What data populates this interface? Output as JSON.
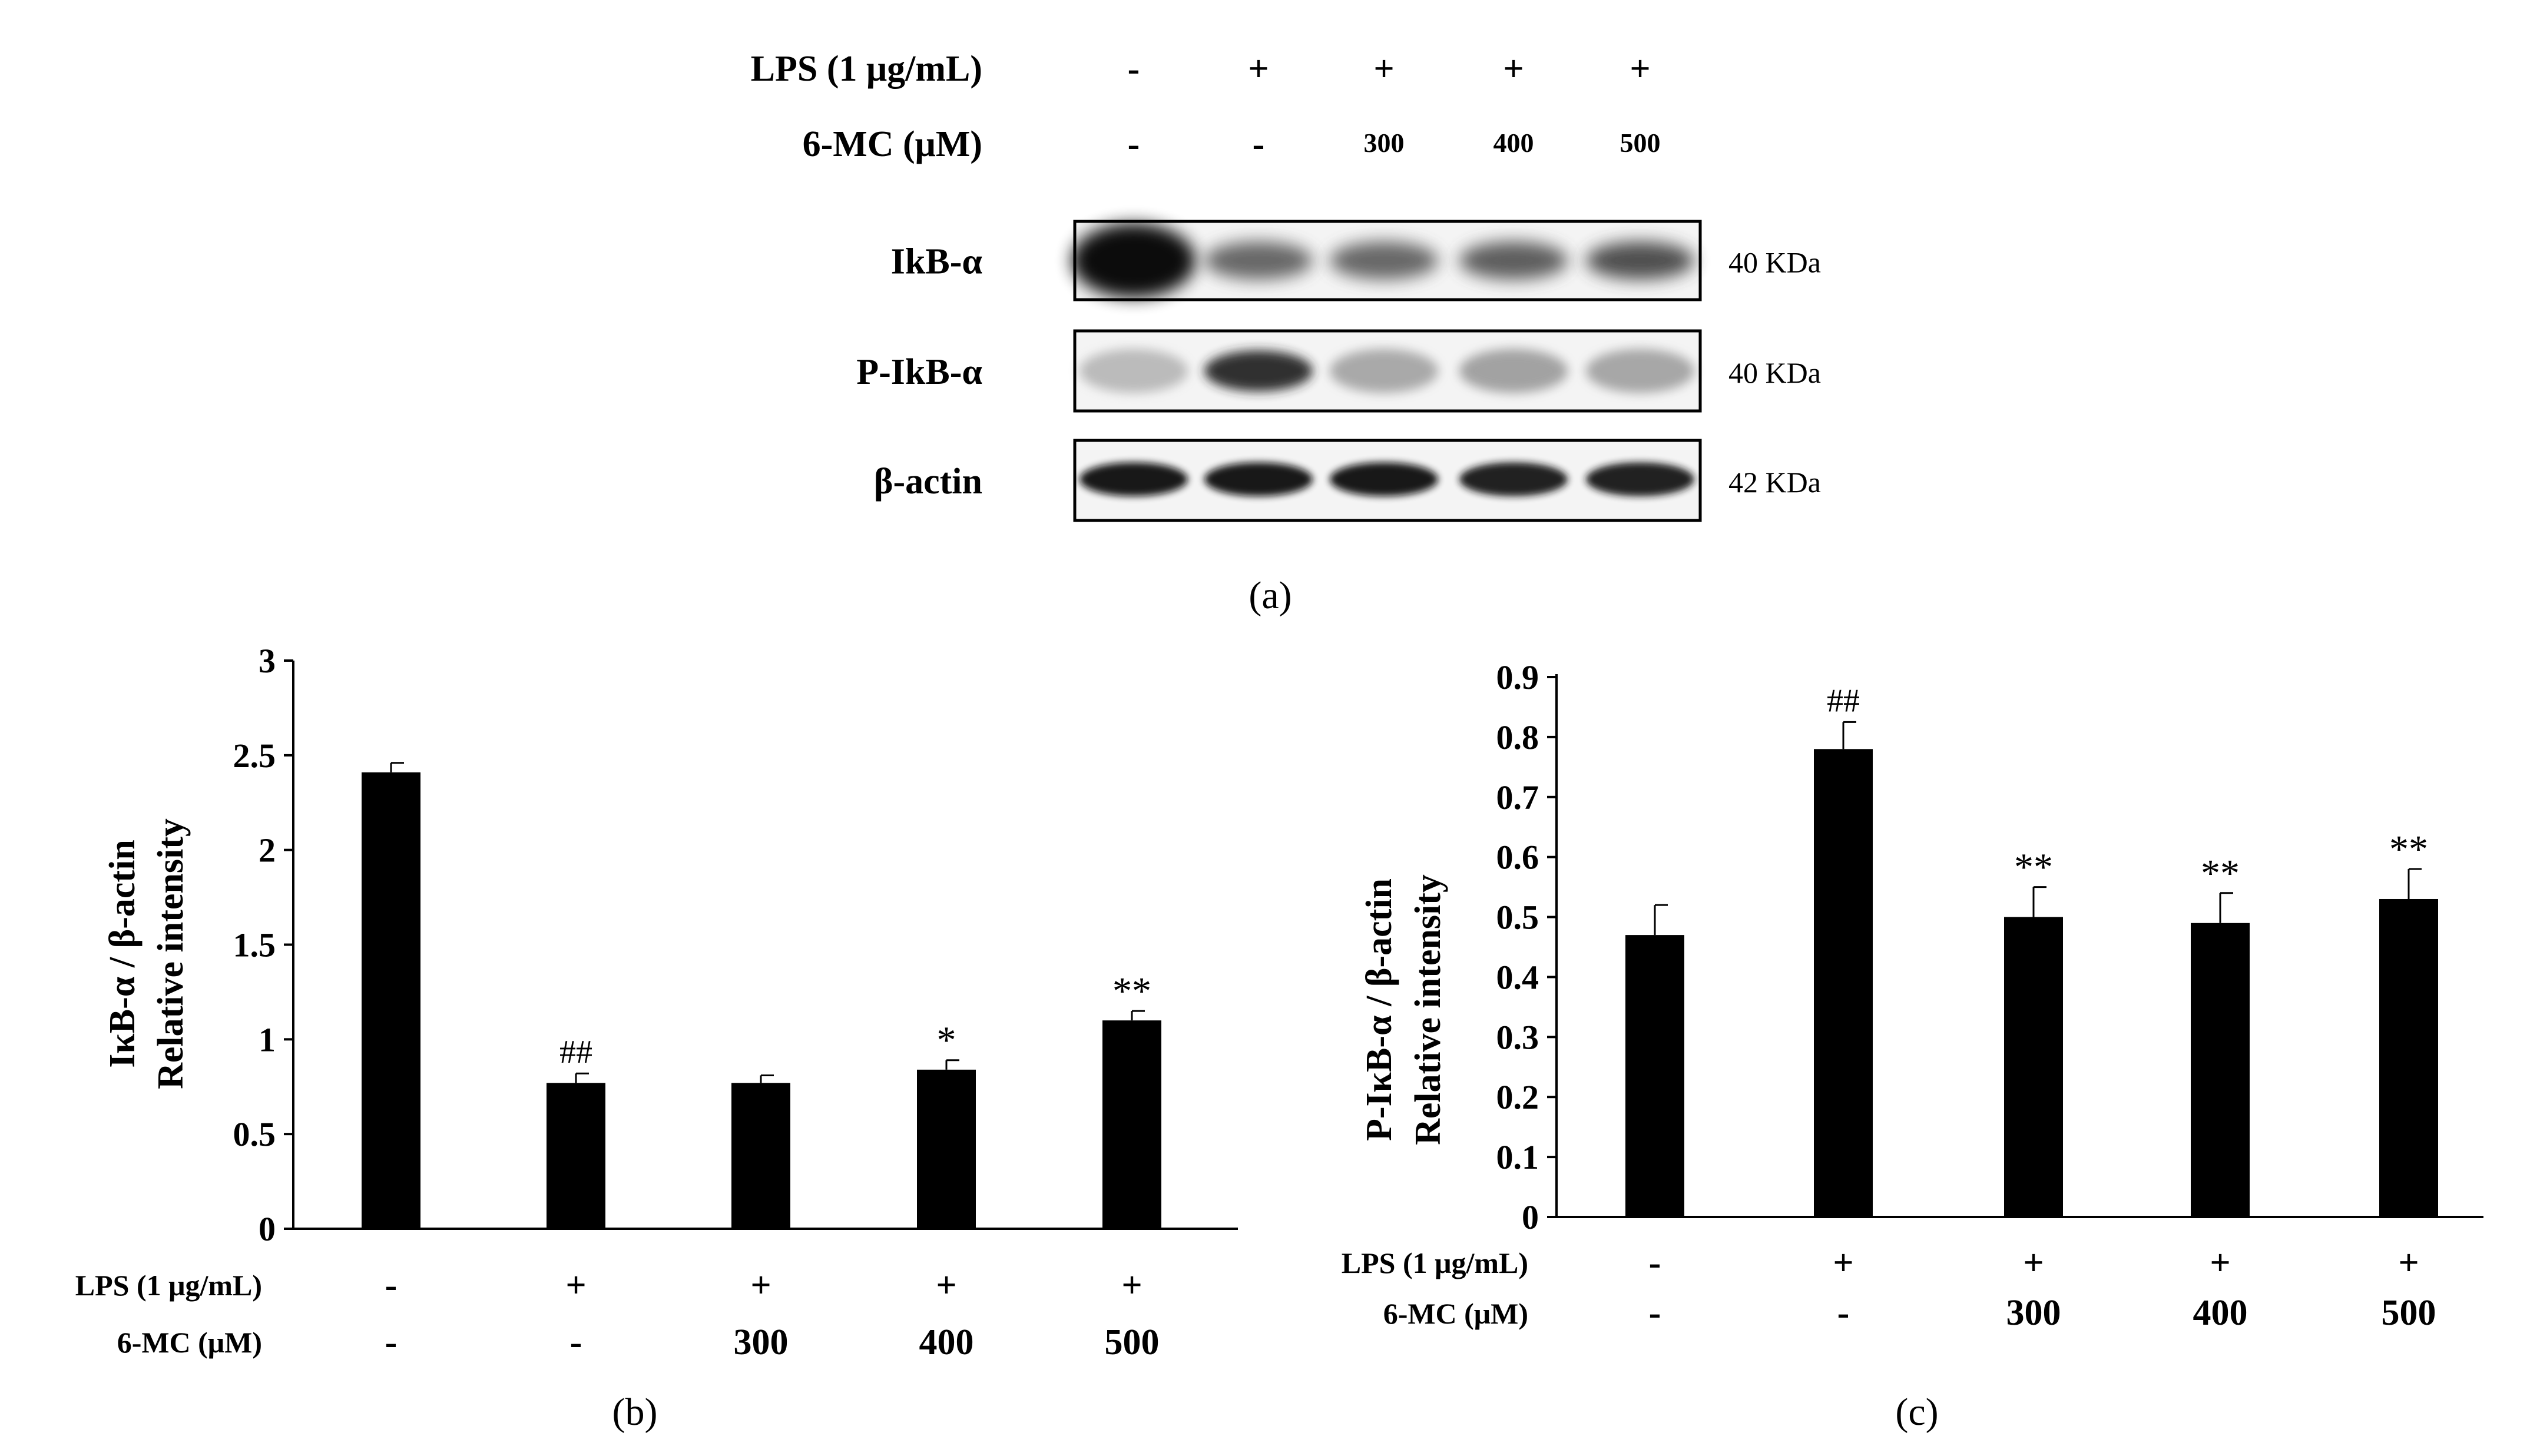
{
  "panel_a": {
    "row_labels": {
      "lps": "LPS (1 μg/mL)",
      "mc": "6-MC (μM)"
    },
    "lps_signs": [
      "-",
      "+",
      "+",
      "+",
      "+"
    ],
    "mc_values": [
      "-",
      "-",
      "300",
      "400",
      "500"
    ],
    "blots": [
      {
        "label": "IkB-α",
        "kda": "40 KDa",
        "band_intensity": [
          1.0,
          0.62,
          0.62,
          0.66,
          0.72
        ],
        "band_blur": [
          1.0,
          0.6,
          0.6,
          0.6,
          0.6
        ]
      },
      {
        "label": "P-IkB-α",
        "kda": "40 KDa",
        "band_intensity": [
          0.28,
          0.85,
          0.35,
          0.38,
          0.36
        ],
        "band_blur": [
          0.8,
          0.7,
          0.8,
          0.8,
          0.8
        ]
      },
      {
        "label": "β-actin",
        "kda": "42 KDa",
        "band_intensity": [
          0.95,
          0.95,
          0.95,
          0.92,
          0.9
        ],
        "band_blur": [
          0.45,
          0.45,
          0.45,
          0.45,
          0.45
        ]
      }
    ],
    "caption": "(a)"
  },
  "panel_b": {
    "caption": "(b)",
    "row_labels": {
      "lps": "LPS (1 μg/mL)",
      "mc": "6-MC (μM)"
    },
    "lps_signs": [
      "-",
      "+",
      "+",
      "+",
      "+"
    ],
    "mc_values": [
      "-",
      "-",
      "300",
      "400",
      "500"
    ],
    "chart_data": {
      "type": "bar",
      "ylabel_line1": "IκB-α / β-actin",
      "ylabel_line2": "Relative intensity",
      "ylim": [
        0,
        3
      ],
      "yticks": [
        "0",
        "0.5",
        "1",
        "1.5",
        "2",
        "2.5",
        "3"
      ],
      "values": [
        2.41,
        0.77,
        0.77,
        0.84,
        1.1
      ],
      "errors": [
        0.05,
        0.05,
        0.04,
        0.05,
        0.05
      ],
      "annotations": [
        "",
        "##",
        "",
        "*",
        "**"
      ],
      "grid": false,
      "color": "#000000"
    }
  },
  "panel_c": {
    "caption": "(c)",
    "row_labels": {
      "lps": "LPS (1 μg/mL)",
      "mc": "6-MC (μM)"
    },
    "lps_signs": [
      "-",
      "+",
      "+",
      "+",
      "+"
    ],
    "mc_values": [
      "-",
      "-",
      "300",
      "400",
      "500"
    ],
    "chart_data": {
      "type": "bar",
      "ylabel_line1": "P-IκB-α / β-actin",
      "ylabel_line2": "Relative intensity",
      "ylim": [
        0,
        0.9
      ],
      "yticks": [
        "0",
        "0.1",
        "0.2",
        "0.3",
        "0.4",
        "0.5",
        "0.6",
        "0.7",
        "0.8",
        "0.9"
      ],
      "values": [
        0.47,
        0.78,
        0.5,
        0.49,
        0.53
      ],
      "errors": [
        0.05,
        0.045,
        0.05,
        0.05,
        0.05
      ],
      "annotations": [
        "",
        "##",
        "**",
        "**",
        "**"
      ],
      "grid": false,
      "color": "#000000"
    }
  }
}
